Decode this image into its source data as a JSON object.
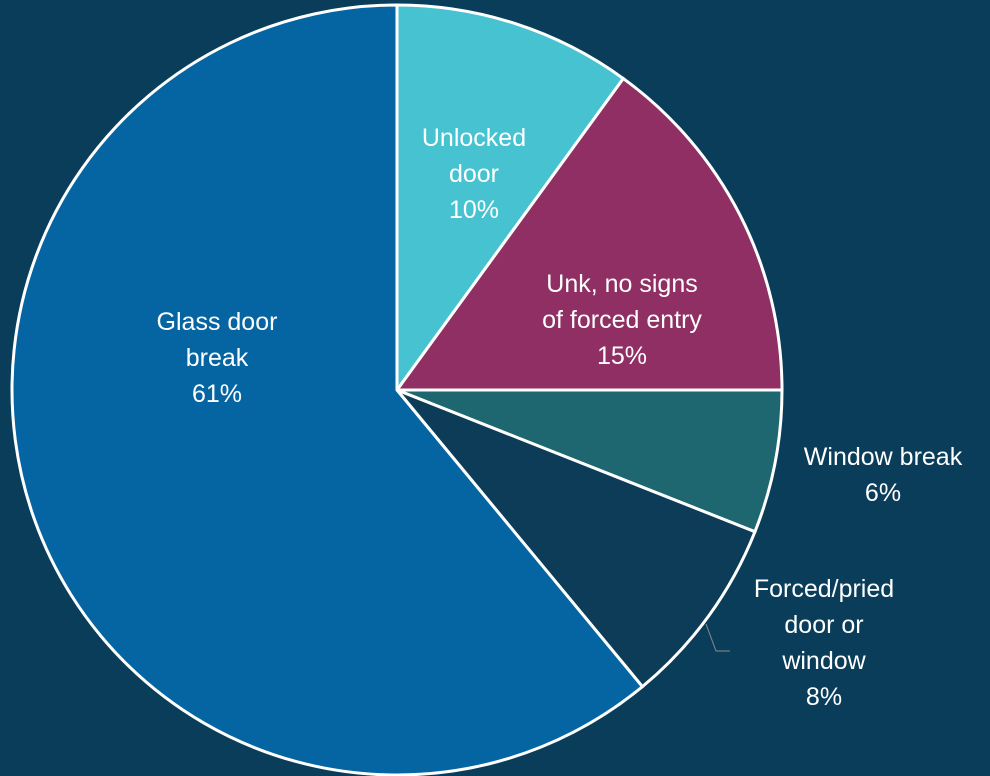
{
  "chart_data": {
    "type": "pie",
    "start_angle": "12 o'clock",
    "direction": "clockwise",
    "slices": [
      {
        "label": [
          "Unlocked",
          "door"
        ],
        "value": 10,
        "value_label": "10%",
        "color": "#47c2d1"
      },
      {
        "label": [
          "Unk, no signs",
          "of forced entry"
        ],
        "value": 15,
        "value_label": "15%",
        "color": "#8f2f63"
      },
      {
        "label": [
          "Window break"
        ],
        "value": 6,
        "value_label": "6%",
        "color": "#1e6770"
      },
      {
        "label": [
          "Forced/pried",
          "door or",
          "window"
        ],
        "value": 8,
        "value_label": "8%",
        "color": "#0c3c58"
      },
      {
        "label": [
          "Glass door",
          "break"
        ],
        "value": 61,
        "value_label": "61%",
        "color": "#0465a2"
      }
    ]
  }
}
